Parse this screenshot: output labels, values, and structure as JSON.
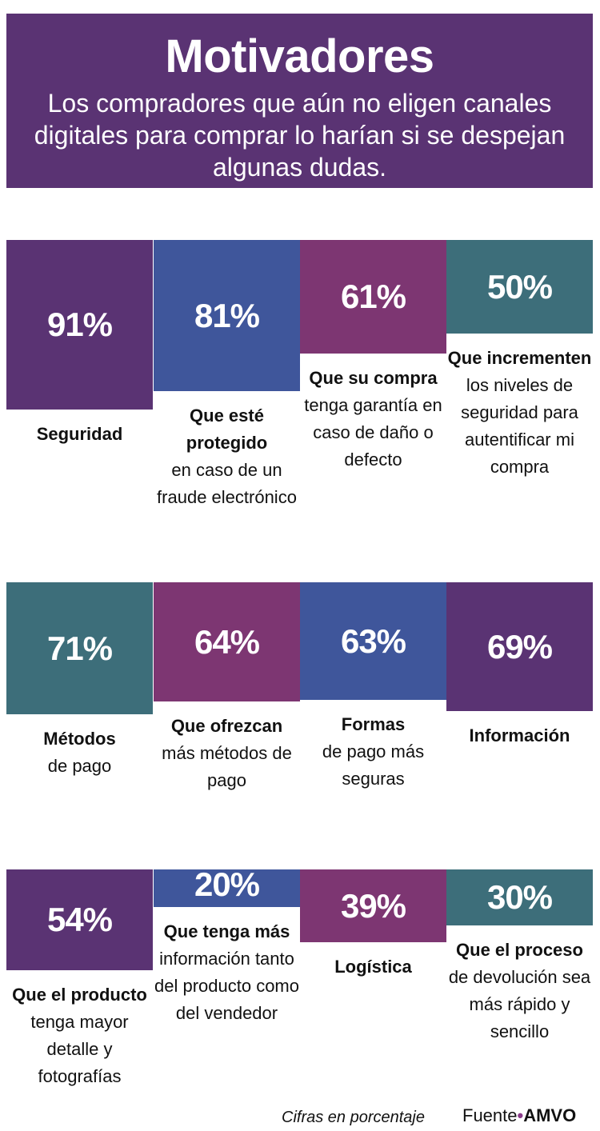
{
  "header": {
    "title": "Motivadores",
    "subtitle": "Los compradores que aún no eligen canales digitales para comprar lo harían si se despejan algunas dudas."
  },
  "colors": {
    "purple": "#5a3373",
    "blue": "#3f569b",
    "magenta": "#7d3672",
    "teal": "#3d6e7a"
  },
  "chart_data": {
    "type": "bar",
    "title": "Motivadores",
    "unit": "%",
    "ylim": [
      0,
      100
    ],
    "rows": [
      {
        "items": [
          {
            "value": 91,
            "label": "91%",
            "color": "purple",
            "bold": "Seguridad",
            "text": ""
          },
          {
            "value": 81,
            "label": "81%",
            "color": "blue",
            "bold": "Que esté protegido",
            "text": "en caso de un fraude electrónico"
          },
          {
            "value": 61,
            "label": "61%",
            "color": "magenta",
            "bold": "Que su compra",
            "text": "tenga garantía en caso de daño o defecto"
          },
          {
            "value": 50,
            "label": "50%",
            "color": "teal",
            "bold": "Que incrementen",
            "text": "los niveles de seguridad para autentificar mi compra"
          }
        ]
      },
      {
        "items": [
          {
            "value": 71,
            "label": "71%",
            "color": "teal",
            "bold": "Métodos",
            "text": "de pago"
          },
          {
            "value": 64,
            "label": "64%",
            "color": "magenta",
            "bold": "Que ofrezcan",
            "text": "más métodos de pago"
          },
          {
            "value": 63,
            "label": "63%",
            "color": "blue",
            "bold": "Formas",
            "text": "de pago más seguras"
          },
          {
            "value": 69,
            "label": "69%",
            "color": "purple",
            "bold": "Información",
            "text": ""
          }
        ]
      },
      {
        "items": [
          {
            "value": 54,
            "label": "54%",
            "color": "purple",
            "bold": "Que el producto",
            "text": "tenga mayor detalle y fotografías"
          },
          {
            "value": 20,
            "label": "20%",
            "color": "blue",
            "bold": "Que tenga más",
            "text": "información tanto del producto como del vendedor"
          },
          {
            "value": 39,
            "label": "39%",
            "color": "magenta",
            "bold": "Logística",
            "text": ""
          },
          {
            "value": 30,
            "label": "30%",
            "color": "teal",
            "bold": "Que el proceso",
            "text": "de devolución sea más rápido y sencillo"
          }
        ]
      }
    ]
  },
  "footer": {
    "note": "Cifras en porcentaje",
    "source_prefix": "Fuente",
    "source_dot": "•",
    "source_org": "AMVO"
  }
}
